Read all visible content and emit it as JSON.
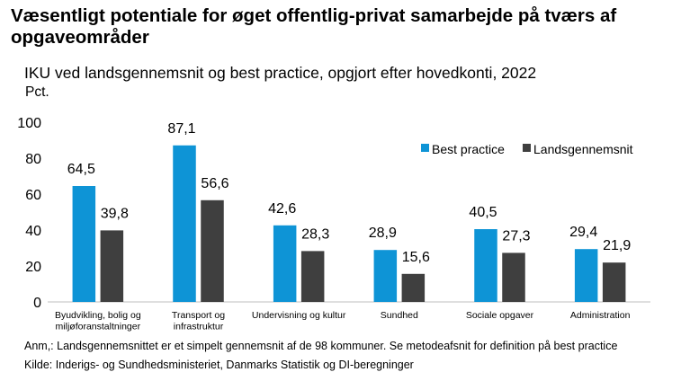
{
  "header": {
    "title": "Væsentligt potentiale for øget offentlig-privat samarbejde på tværs af opgaveområder",
    "subtitle": "IKU ved landsgennemsnit og best practice, opgjort efter hovedkonti, 2022"
  },
  "notes": {
    "anm": "Anm,: Landsgennemsnittet er et simpelt gennemsnit af de 98 kommuner. Se metodeafsnit for definition på best practice",
    "kilde": "Kilde: Inderigs- og Sundhedsministeriet, Danmarks Statistik og DI-beregninger"
  },
  "chart_data": {
    "type": "bar",
    "ylabel": "Pct.",
    "ylim": [
      0,
      100
    ],
    "yticks": [
      0,
      20,
      40,
      60,
      80,
      100
    ],
    "grid": false,
    "legend_position": "top-right",
    "categories": [
      [
        "Byudvikling, bolig og",
        "miljøforanstaltninger"
      ],
      [
        "Transport og",
        "infrastruktur"
      ],
      [
        "Undervisning og kultur"
      ],
      [
        "Sundhed"
      ],
      [
        "Sociale opgaver"
      ],
      [
        "Administration"
      ]
    ],
    "series": [
      {
        "name": "Best practice",
        "color": "#0e94d6",
        "values": [
          64.5,
          87.1,
          42.6,
          28.9,
          40.5,
          29.4
        ]
      },
      {
        "name": "Landsgennemsnit",
        "color": "#3f3f3f",
        "values": [
          39.8,
          56.6,
          28.3,
          15.6,
          27.3,
          21.9
        ]
      }
    ]
  }
}
